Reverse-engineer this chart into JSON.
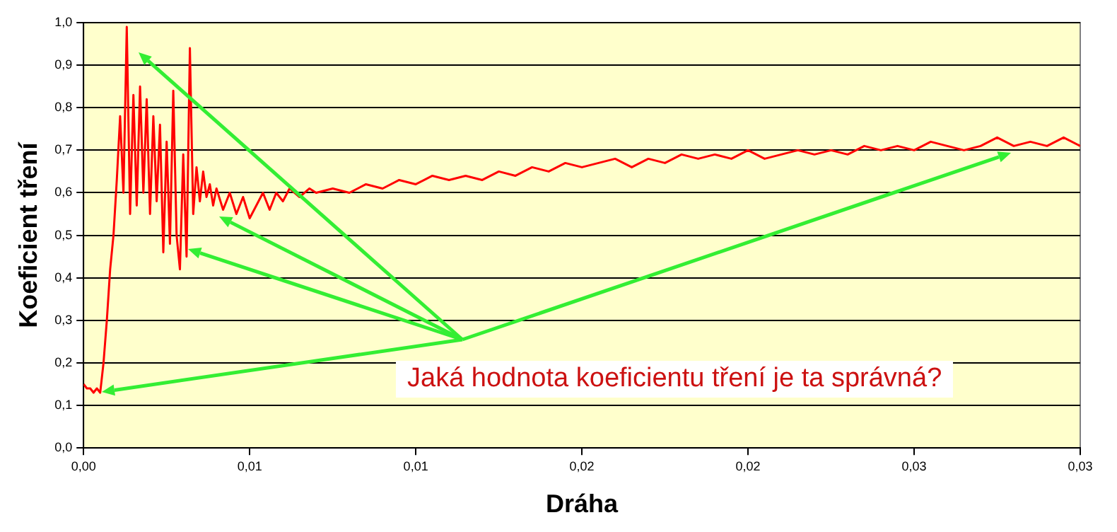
{
  "chart_data": {
    "type": "line",
    "xlabel": "Dráha",
    "ylabel": "Koeficient tření",
    "annotations": [
      "Jaká hodnota koeficientu tření je ta správná?"
    ],
    "xlim": [
      0,
      0.03
    ],
    "xticks": [
      {
        "value": 0,
        "label": "0,00"
      },
      {
        "value": 0.005,
        "label": "0,01"
      },
      {
        "value": 0.01,
        "label": "0,01"
      },
      {
        "value": 0.015,
        "label": "0,02"
      },
      {
        "value": 0.02,
        "label": "0,02"
      },
      {
        "value": 0.025,
        "label": "0,03"
      },
      {
        "value": 0.03,
        "label": "0,03"
      }
    ],
    "ylim": [
      0,
      1
    ],
    "yticks": [
      {
        "value": 0,
        "label": "0,0"
      },
      {
        "value": 0.1,
        "label": "0,1"
      },
      {
        "value": 0.2,
        "label": "0,2"
      },
      {
        "value": 0.3,
        "label": "0,3"
      },
      {
        "value": 0.4,
        "label": "0,4"
      },
      {
        "value": 0.5,
        "label": "0,5"
      },
      {
        "value": 0.6,
        "label": "0,6"
      },
      {
        "value": 0.7,
        "label": "0,7"
      },
      {
        "value": 0.8,
        "label": "0,8"
      },
      {
        "value": 0.9,
        "label": "0,9"
      },
      {
        "value": 1,
        "label": "1,0"
      }
    ],
    "grid": "y",
    "legend": false,
    "marker": "none",
    "line_style": "solid",
    "series": [
      {
        "color": "#ff0000",
        "x": [
          0,
          0.0001,
          0.0002,
          0.0003,
          0.0004,
          0.0005,
          0.0006,
          0.0007,
          0.0008,
          0.0009,
          0.001,
          0.0011,
          0.0012,
          0.0013,
          0.0014,
          0.0015,
          0.0016,
          0.0017,
          0.0018,
          0.0019,
          0.002,
          0.0021,
          0.0022,
          0.0023,
          0.0024,
          0.0025,
          0.0026,
          0.0027,
          0.0028,
          0.0029,
          0.003,
          0.0031,
          0.0032,
          0.0033,
          0.0034,
          0.0035,
          0.0036,
          0.0037,
          0.0038,
          0.0039,
          0.004,
          0.0042,
          0.0044,
          0.0046,
          0.0048,
          0.005,
          0.0052,
          0.0054,
          0.0056,
          0.0058,
          0.006,
          0.0062,
          0.0065,
          0.0068,
          0.007,
          0.0075,
          0.008,
          0.0085,
          0.009,
          0.0095,
          0.01,
          0.0105,
          0.011,
          0.0115,
          0.012,
          0.0125,
          0.013,
          0.0135,
          0.014,
          0.0145,
          0.015,
          0.0155,
          0.016,
          0.0165,
          0.017,
          0.0175,
          0.018,
          0.0185,
          0.019,
          0.0195,
          0.02,
          0.0205,
          0.021,
          0.0215,
          0.022,
          0.0225,
          0.023,
          0.0235,
          0.024,
          0.0245,
          0.025,
          0.0255,
          0.026,
          0.0265,
          0.027,
          0.0275,
          0.028,
          0.0285,
          0.029,
          0.0295,
          0.03
        ],
        "values": [
          0.15,
          0.14,
          0.14,
          0.13,
          0.14,
          0.13,
          0.2,
          0.3,
          0.42,
          0.5,
          0.63,
          0.78,
          0.6,
          0.99,
          0.55,
          0.83,
          0.57,
          0.85,
          0.6,
          0.82,
          0.55,
          0.78,
          0.58,
          0.76,
          0.46,
          0.72,
          0.48,
          0.84,
          0.5,
          0.42,
          0.69,
          0.45,
          0.94,
          0.55,
          0.66,
          0.58,
          0.65,
          0.59,
          0.62,
          0.57,
          0.61,
          0.56,
          0.6,
          0.55,
          0.59,
          0.54,
          0.57,
          0.6,
          0.56,
          0.6,
          0.58,
          0.61,
          0.59,
          0.61,
          0.6,
          0.61,
          0.6,
          0.62,
          0.61,
          0.63,
          0.62,
          0.64,
          0.63,
          0.64,
          0.63,
          0.65,
          0.64,
          0.66,
          0.65,
          0.67,
          0.66,
          0.67,
          0.68,
          0.66,
          0.68,
          0.67,
          0.69,
          0.68,
          0.69,
          0.68,
          0.7,
          0.68,
          0.69,
          0.7,
          0.69,
          0.7,
          0.69,
          0.71,
          0.7,
          0.71,
          0.7,
          0.72,
          0.71,
          0.7,
          0.71,
          0.73,
          0.71,
          0.72,
          0.71,
          0.73,
          0.71
        ]
      }
    ]
  }
}
